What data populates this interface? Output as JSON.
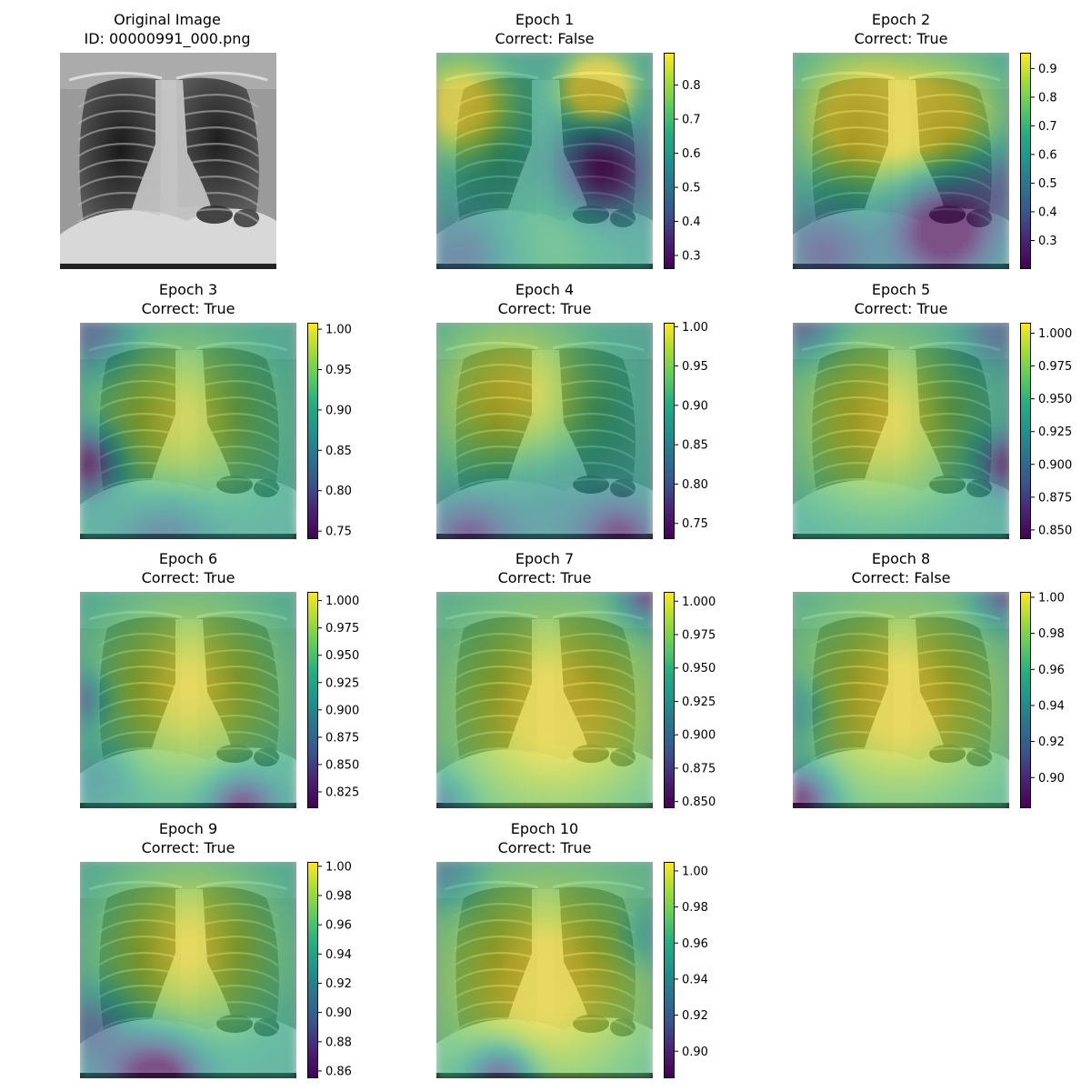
{
  "original": {
    "title_line1": "Original Image",
    "title_line2": "ID: 00000991_000.png",
    "image_kind": "chest-xray"
  },
  "colormap": "viridis",
  "chart_data": [
    {
      "type": "heatmap",
      "title": "Epoch 1",
      "subtitle": "Correct: False",
      "colorbar": {
        "min": 0.26,
        "max": 0.895,
        "ticks": [
          0.3,
          0.4,
          0.5,
          0.6,
          0.7,
          0.8
        ]
      },
      "hotspots": [
        {
          "u": 0.75,
          "v": 0.17,
          "w": 0.8,
          "s": 0.11
        },
        {
          "u": 0.12,
          "v": 0.25,
          "w": 0.55,
          "s": 0.16
        },
        {
          "u": 0.78,
          "v": 0.55,
          "w": -0.6,
          "s": 0.14
        },
        {
          "u": 0.12,
          "v": 0.95,
          "w": -0.25,
          "s": 0.14
        },
        {
          "u": 0.55,
          "v": 0.85,
          "w": 0.15,
          "s": 0.2
        }
      ],
      "base": 0.55
    },
    {
      "type": "heatmap",
      "title": "Epoch 2",
      "subtitle": "Correct: True",
      "colorbar": {
        "min": 0.2,
        "max": 0.955,
        "ticks": [
          0.3,
          0.4,
          0.5,
          0.6,
          0.7,
          0.8,
          0.9
        ]
      },
      "hotspots": [
        {
          "u": 0.32,
          "v": 0.3,
          "w": 0.55,
          "s": 0.22
        },
        {
          "u": 0.72,
          "v": 0.3,
          "w": 0.4,
          "s": 0.2
        },
        {
          "u": 0.7,
          "v": 0.82,
          "w": -0.75,
          "s": 0.15
        },
        {
          "u": 0.15,
          "v": 0.92,
          "w": -0.35,
          "s": 0.15
        },
        {
          "u": 0.97,
          "v": 0.6,
          "w": -0.3,
          "s": 0.12
        }
      ],
      "base": 0.55
    },
    {
      "type": "heatmap",
      "title": "Epoch 3",
      "subtitle": "Correct: True",
      "colorbar": {
        "min": 0.74,
        "max": 1.008,
        "ticks": [
          0.75,
          0.8,
          0.85,
          0.9,
          0.95,
          1.0
        ]
      },
      "hotspots": [
        {
          "u": 0.45,
          "v": 0.45,
          "w": 0.4,
          "s": 0.3
        },
        {
          "u": 0.03,
          "v": 0.65,
          "w": -0.7,
          "s": 0.1
        },
        {
          "u": 0.05,
          "v": 0.05,
          "w": -0.35,
          "s": 0.12
        },
        {
          "u": 0.4,
          "v": 1.0,
          "w": -0.3,
          "s": 0.15
        }
      ],
      "base": 0.55
    },
    {
      "type": "heatmap",
      "title": "Epoch 4",
      "subtitle": "Correct: True",
      "colorbar": {
        "min": 0.73,
        "max": 1.005,
        "ticks": [
          0.75,
          0.8,
          0.85,
          0.9,
          0.95,
          1.0
        ]
      },
      "hotspots": [
        {
          "u": 0.35,
          "v": 0.35,
          "w": 0.45,
          "s": 0.28
        },
        {
          "u": 0.15,
          "v": 1.0,
          "w": -0.45,
          "s": 0.13
        },
        {
          "u": 0.85,
          "v": 1.0,
          "w": -0.5,
          "s": 0.12
        },
        {
          "u": 0.5,
          "v": 0.8,
          "w": -0.15,
          "s": 0.2
        }
      ],
      "base": 0.55
    },
    {
      "type": "heatmap",
      "title": "Epoch 5",
      "subtitle": "Correct: True",
      "colorbar": {
        "min": 0.843,
        "max": 1.008,
        "ticks": [
          0.85,
          0.875,
          0.9,
          0.925,
          0.95,
          0.975,
          1.0
        ]
      },
      "hotspots": [
        {
          "u": 0.4,
          "v": 0.45,
          "w": 0.45,
          "s": 0.3
        },
        {
          "u": 1.0,
          "v": 0.65,
          "w": -0.6,
          "s": 0.09
        },
        {
          "u": 0.05,
          "v": 0.0,
          "w": -0.4,
          "s": 0.1
        },
        {
          "u": 0.95,
          "v": 0.05,
          "w": -0.3,
          "s": 0.1
        }
      ],
      "base": 0.55
    },
    {
      "type": "heatmap",
      "title": "Epoch 6",
      "subtitle": "Correct: True",
      "colorbar": {
        "min": 0.81,
        "max": 1.008,
        "ticks": [
          0.825,
          0.85,
          0.875,
          0.9,
          0.925,
          0.95,
          0.975,
          1.0
        ]
      },
      "hotspots": [
        {
          "u": 0.5,
          "v": 0.45,
          "w": 0.45,
          "s": 0.32
        },
        {
          "u": 0.75,
          "v": 1.0,
          "w": -0.6,
          "s": 0.1
        },
        {
          "u": 0.0,
          "v": 0.5,
          "w": -0.4,
          "s": 0.08
        },
        {
          "u": 0.1,
          "v": 0.85,
          "w": -0.15,
          "s": 0.1
        }
      ],
      "base": 0.55
    },
    {
      "type": "heatmap",
      "title": "Epoch 7",
      "subtitle": "Correct: True",
      "colorbar": {
        "min": 0.845,
        "max": 1.007,
        "ticks": [
          0.85,
          0.875,
          0.9,
          0.925,
          0.95,
          0.975,
          1.0
        ]
      },
      "hotspots": [
        {
          "u": 0.55,
          "v": 0.55,
          "w": 0.45,
          "s": 0.35
        },
        {
          "u": 1.0,
          "v": 0.0,
          "w": -0.6,
          "s": 0.1
        },
        {
          "u": 0.0,
          "v": 1.0,
          "w": -0.3,
          "s": 0.1
        }
      ],
      "base": 0.6
    },
    {
      "type": "heatmap",
      "title": "Epoch 8",
      "subtitle": "Correct: False",
      "colorbar": {
        "min": 0.883,
        "max": 1.003,
        "ticks": [
          0.9,
          0.92,
          0.94,
          0.96,
          0.98,
          1.0
        ]
      },
      "hotspots": [
        {
          "u": 0.5,
          "v": 0.5,
          "w": 0.45,
          "s": 0.33
        },
        {
          "u": 0.03,
          "v": 0.97,
          "w": -0.7,
          "s": 0.1
        },
        {
          "u": 1.0,
          "v": 0.0,
          "w": -0.5,
          "s": 0.1
        },
        {
          "u": 0.0,
          "v": 0.55,
          "w": -0.25,
          "s": 0.1
        }
      ],
      "base": 0.6
    },
    {
      "type": "heatmap",
      "title": "Epoch 9",
      "subtitle": "Correct: True",
      "colorbar": {
        "min": 0.855,
        "max": 1.003,
        "ticks": [
          0.86,
          0.88,
          0.9,
          0.92,
          0.94,
          0.96,
          0.98,
          1.0
        ]
      },
      "hotspots": [
        {
          "u": 0.5,
          "v": 0.4,
          "w": 0.45,
          "s": 0.3
        },
        {
          "u": 0.38,
          "v": 1.0,
          "w": -0.7,
          "s": 0.12
        },
        {
          "u": 0.05,
          "v": 0.75,
          "w": -0.3,
          "s": 0.1
        },
        {
          "u": 0.2,
          "v": 0.95,
          "w": -0.2,
          "s": 0.14
        }
      ],
      "base": 0.55
    },
    {
      "type": "heatmap",
      "title": "Epoch 10",
      "subtitle": "Correct: True",
      "colorbar": {
        "min": 0.885,
        "max": 1.005,
        "ticks": [
          0.9,
          0.92,
          0.94,
          0.96,
          0.98,
          1.0
        ]
      },
      "hotspots": [
        {
          "u": 0.5,
          "v": 0.55,
          "w": 0.45,
          "s": 0.35
        },
        {
          "u": 0.3,
          "v": 1.0,
          "w": -0.6,
          "s": 0.1
        },
        {
          "u": 0.05,
          "v": 0.05,
          "w": -0.25,
          "s": 0.1
        },
        {
          "u": 1.0,
          "v": 0.35,
          "w": -0.2,
          "s": 0.1
        }
      ],
      "base": 0.6
    }
  ]
}
